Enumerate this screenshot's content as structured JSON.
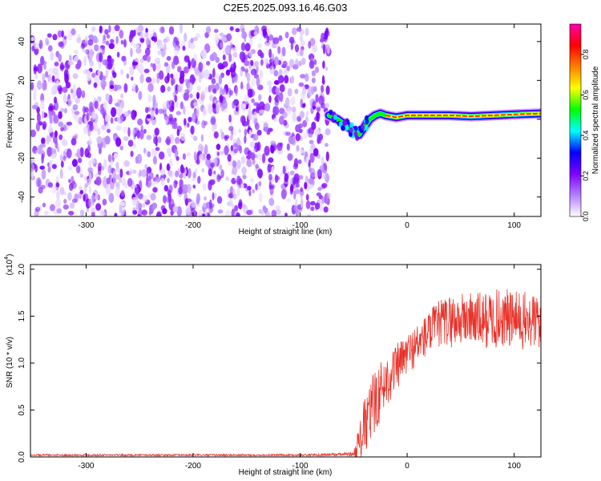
{
  "figure_title": "C2E5.2025.093.16.46.G03",
  "chart_data": [
    {
      "type": "heatmap",
      "title": "C2E5.2025.093.16.46.G03",
      "xlabel": "Height of straight line (km)",
      "ylabel": "Frequency (Hz)",
      "xlim": [
        -352,
        125
      ],
      "ylim": [
        -50,
        49
      ],
      "x_ticks": [
        -300,
        -200,
        -100,
        0,
        100
      ],
      "y_ticks": [
        -40,
        -20,
        0,
        20,
        40
      ],
      "noise_region_x": [
        -352,
        -73
      ],
      "noise_band_frequency_range": [
        -50,
        47
      ],
      "signal_track": {
        "x": [
          -73,
          -65,
          -55,
          -45,
          -40,
          -35,
          -30,
          -25,
          -20,
          -10,
          0,
          20,
          40,
          60,
          80,
          100,
          125
        ],
        "frequency": [
          2,
          0,
          -4,
          -8,
          -4,
          0,
          2,
          3,
          2,
          1,
          2,
          2,
          2,
          1.5,
          2,
          2.5,
          3
        ]
      },
      "colorbar": {
        "label": "Normalized spectral amplitude",
        "range": [
          0.0,
          0.95
        ],
        "ticks": [
          0.0,
          0.2,
          0.4,
          0.6,
          0.8
        ],
        "tick_labels": [
          "0.0",
          "0.2",
          "0.4",
          "0.6",
          "0.8"
        ],
        "colormap": [
          "#ffffff",
          "#b27fff",
          "#7f00ff",
          "#0000ff",
          "#00ffff",
          "#00ff00",
          "#ffff00",
          "#ff7f00",
          "#ff0000",
          "#ff00aa"
        ]
      },
      "grid": false
    },
    {
      "type": "line",
      "xlabel": "Height of straight line (km)",
      "ylabel": "SNR (10 * v/v)",
      "y_multiplier_label": "(x10",
      "y_multiplier_exp": "4",
      "xlim": [
        -352,
        125
      ],
      "ylim": [
        0.0,
        2.05
      ],
      "x_ticks": [
        -300,
        -200,
        -100,
        0,
        100
      ],
      "y_ticks": [
        0.0,
        0.5,
        1.0,
        1.5,
        2.0
      ],
      "y_tick_labels": [
        "0.0",
        "0.5",
        "1.0",
        "1.5",
        "2.0"
      ],
      "series": [
        {
          "color": "#e8332b",
          "x": [
            -352,
            -100,
            -50,
            -45,
            -40,
            -35,
            -30,
            -25,
            -20,
            -15,
            -10,
            -5,
            0,
            10,
            20,
            30,
            40,
            50,
            60,
            70,
            80,
            90,
            100,
            110,
            125
          ],
          "y": [
            0.02,
            0.02,
            0.03,
            0.15,
            0.3,
            0.45,
            0.6,
            0.7,
            0.8,
            0.88,
            0.95,
            1.02,
            1.1,
            1.2,
            1.32,
            1.42,
            1.45,
            1.46,
            1.48,
            1.45,
            1.47,
            1.48,
            1.46,
            1.44,
            1.45
          ],
          "spread": [
            0.01,
            0.01,
            0.02,
            0.12,
            0.2,
            0.22,
            0.22,
            0.2,
            0.18,
            0.17,
            0.16,
            0.15,
            0.14,
            0.14,
            0.15,
            0.16,
            0.18,
            0.18,
            0.18,
            0.19,
            0.2,
            0.2,
            0.2,
            0.2,
            0.2
          ]
        }
      ],
      "grid": false
    }
  ]
}
